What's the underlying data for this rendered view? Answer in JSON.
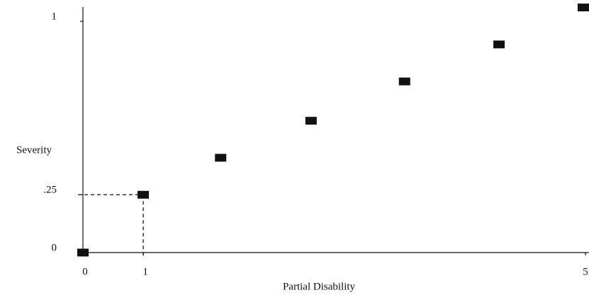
{
  "chart_data": {
    "type": "scatter",
    "x_label": "Partial Disability",
    "y_label": "Severity",
    "x": [
      0,
      0.6,
      1.37,
      2.27,
      3.2,
      4.14,
      5.0
    ],
    "values": [
      0,
      0.25,
      0.41,
      0.57,
      0.74,
      0.9,
      1.06
    ],
    "color": "#111111",
    "xlim": [
      0,
      5
    ],
    "ylim": [
      0,
      1.08
    ],
    "xticks": [
      0,
      {
        "value": 0.6,
        "label": "1"
      },
      5
    ],
    "yticks": [
      0,
      {
        "value": 0.25,
        "label": ".25"
      },
      1
    ],
    "grid": false
  }
}
